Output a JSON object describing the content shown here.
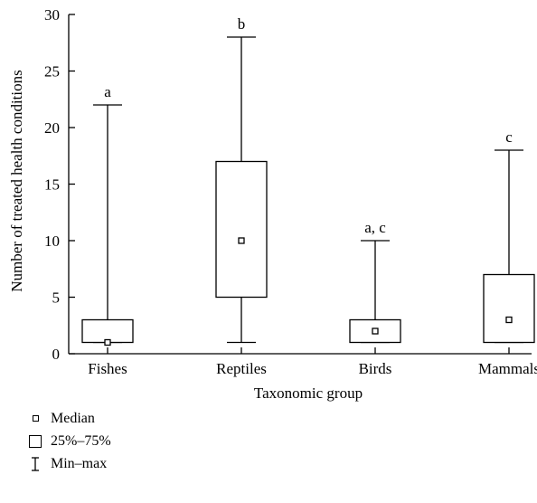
{
  "chart_data": {
    "type": "boxplot",
    "xlabel": "Taxonomic group",
    "ylabel": "Number of treated health conditions",
    "ylim": [
      0,
      30
    ],
    "yticks": [
      0,
      5,
      10,
      15,
      20,
      25,
      30
    ],
    "categories": [
      "Fishes",
      "Reptiles",
      "Birds",
      "Mammals"
    ],
    "boxes": [
      {
        "category": "Fishes",
        "min": 1,
        "q1": 1,
        "median": 1,
        "q3": 3,
        "max": 22,
        "significance": "a"
      },
      {
        "category": "Reptiles",
        "min": 1,
        "q1": 5,
        "median": 10,
        "q3": 17,
        "max": 28,
        "significance": "b"
      },
      {
        "category": "Birds",
        "min": 1,
        "q1": 1,
        "median": 2,
        "q3": 3,
        "max": 10,
        "significance": "a, c"
      },
      {
        "category": "Mammals",
        "min": 1,
        "q1": 1,
        "median": 3,
        "q3": 7,
        "max": 18,
        "significance": "c"
      }
    ],
    "legend": {
      "median": "Median",
      "box": "25%–75%",
      "whisker": "Min–max"
    }
  }
}
